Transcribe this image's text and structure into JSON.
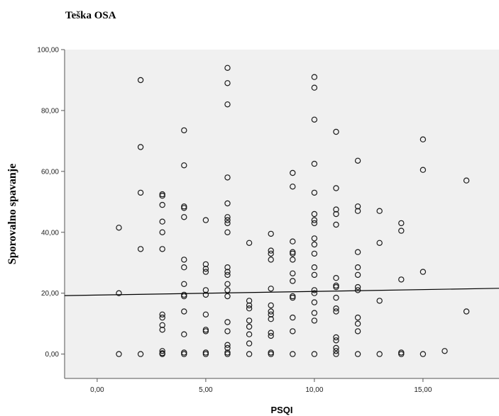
{
  "page": {
    "title": "Teška OSA"
  },
  "colors": {
    "plot_background": "#f0f0f0",
    "marker_stroke": "#1a1a1a",
    "fit_line": "#000000",
    "axis": "#555555"
  },
  "chart_data": {
    "type": "scatter",
    "title": "Teška OSA",
    "xlabel": "PSQI",
    "ylabel": "Sporovalno spavanje",
    "xlim": [
      -1.5,
      18.5
    ],
    "ylim": [
      -8,
      100
    ],
    "xticks": [
      0,
      5,
      10,
      15
    ],
    "xtick_labels": [
      "0,00",
      "5,00",
      "10,00",
      "15,00"
    ],
    "yticks": [
      0,
      20,
      40,
      60,
      80,
      100
    ],
    "ytick_labels": [
      "0,00",
      "20,00",
      "40,00",
      "60,00",
      "80,00",
      "100,00"
    ],
    "grid": false,
    "fit_line": {
      "x": [
        -1.5,
        18.5
      ],
      "y": [
        19.2,
        21.6
      ]
    },
    "points": [
      [
        1,
        41.5
      ],
      [
        1,
        20
      ],
      [
        1,
        0
      ],
      [
        2,
        90
      ],
      [
        2,
        68
      ],
      [
        2,
        53
      ],
      [
        2,
        34.5
      ],
      [
        2,
        0
      ],
      [
        3,
        52.5
      ],
      [
        3,
        52
      ],
      [
        3,
        49
      ],
      [
        3,
        43.5
      ],
      [
        3,
        40
      ],
      [
        3,
        34.5
      ],
      [
        3,
        13
      ],
      [
        3,
        12
      ],
      [
        3,
        9.5
      ],
      [
        3,
        8
      ],
      [
        3,
        1
      ],
      [
        3,
        0.3
      ],
      [
        3,
        0
      ],
      [
        4,
        73.5
      ],
      [
        4,
        62
      ],
      [
        4,
        48.5
      ],
      [
        4,
        48
      ],
      [
        4,
        45
      ],
      [
        4,
        31
      ],
      [
        4,
        28.5
      ],
      [
        4,
        23
      ],
      [
        4,
        19.5
      ],
      [
        4,
        19
      ],
      [
        4,
        14
      ],
      [
        4,
        6.5
      ],
      [
        4,
        0.5
      ],
      [
        4,
        0
      ],
      [
        5,
        44
      ],
      [
        5,
        29.5
      ],
      [
        5,
        28
      ],
      [
        5,
        27
      ],
      [
        5,
        21
      ],
      [
        5,
        19.5
      ],
      [
        5,
        13
      ],
      [
        5,
        8
      ],
      [
        5,
        7.5
      ],
      [
        5,
        0.5
      ],
      [
        5,
        0
      ],
      [
        6,
        94
      ],
      [
        6,
        89
      ],
      [
        6,
        82
      ],
      [
        6,
        58
      ],
      [
        6,
        49.5
      ],
      [
        6,
        45
      ],
      [
        6,
        44
      ],
      [
        6,
        43
      ],
      [
        6,
        40
      ],
      [
        6,
        28.5
      ],
      [
        6,
        27
      ],
      [
        6,
        26
      ],
      [
        6,
        23
      ],
      [
        6,
        21
      ],
      [
        6,
        19
      ],
      [
        6,
        10.5
      ],
      [
        6,
        7.5
      ],
      [
        6,
        3
      ],
      [
        6,
        2
      ],
      [
        6,
        0.5
      ],
      [
        6,
        0
      ],
      [
        7,
        36.5
      ],
      [
        7,
        17.5
      ],
      [
        7,
        16
      ],
      [
        7,
        15
      ],
      [
        7,
        11
      ],
      [
        7,
        9
      ],
      [
        7,
        6.5
      ],
      [
        7,
        3.5
      ],
      [
        7,
        0
      ],
      [
        8,
        39.5
      ],
      [
        8,
        34
      ],
      [
        8,
        33
      ],
      [
        8,
        31
      ],
      [
        8,
        21.5
      ],
      [
        8,
        16
      ],
      [
        8,
        14
      ],
      [
        8,
        13
      ],
      [
        8,
        11.5
      ],
      [
        8,
        7
      ],
      [
        8,
        6
      ],
      [
        8,
        0.5
      ],
      [
        8,
        0
      ],
      [
        9,
        59.5
      ],
      [
        9,
        55
      ],
      [
        9,
        37
      ],
      [
        9,
        33.5
      ],
      [
        9,
        33
      ],
      [
        9,
        31
      ],
      [
        9,
        26.5
      ],
      [
        9,
        24
      ],
      [
        9,
        19
      ],
      [
        9,
        18.5
      ],
      [
        9,
        12
      ],
      [
        9,
        7.5
      ],
      [
        9,
        0
      ],
      [
        10,
        91
      ],
      [
        10,
        87.5
      ],
      [
        10,
        77
      ],
      [
        10,
        62.5
      ],
      [
        10,
        53
      ],
      [
        10,
        46
      ],
      [
        10,
        44
      ],
      [
        10,
        43
      ],
      [
        10,
        38
      ],
      [
        10,
        36
      ],
      [
        10,
        33
      ],
      [
        10,
        28.5
      ],
      [
        10,
        26
      ],
      [
        10,
        21
      ],
      [
        10,
        20
      ],
      [
        10,
        17
      ],
      [
        10,
        13.5
      ],
      [
        10,
        11
      ],
      [
        10,
        0
      ],
      [
        11,
        73
      ],
      [
        11,
        54.5
      ],
      [
        11,
        47.5
      ],
      [
        11,
        46
      ],
      [
        11,
        42.5
      ],
      [
        11,
        25
      ],
      [
        11,
        22.5
      ],
      [
        11,
        22
      ],
      [
        11,
        18.5
      ],
      [
        11,
        15
      ],
      [
        11,
        14
      ],
      [
        11,
        5.5
      ],
      [
        11,
        4.5
      ],
      [
        11,
        2
      ],
      [
        11,
        1
      ],
      [
        11,
        0
      ],
      [
        12,
        63.5
      ],
      [
        12,
        48.5
      ],
      [
        12,
        47
      ],
      [
        12,
        33.5
      ],
      [
        12,
        28.5
      ],
      [
        12,
        26
      ],
      [
        12,
        22
      ],
      [
        12,
        21
      ],
      [
        12,
        12
      ],
      [
        12,
        10
      ],
      [
        12,
        7.5
      ],
      [
        12,
        0
      ],
      [
        13,
        47
      ],
      [
        13,
        36.5
      ],
      [
        13,
        17.5
      ],
      [
        13,
        0
      ],
      [
        14,
        43
      ],
      [
        14,
        40.5
      ],
      [
        14,
        24.5
      ],
      [
        14,
        0.5
      ],
      [
        14,
        0
      ],
      [
        15,
        70.5
      ],
      [
        15,
        60.5
      ],
      [
        15,
        27
      ],
      [
        15,
        0
      ],
      [
        16,
        1
      ],
      [
        17,
        57
      ],
      [
        17,
        14
      ]
    ]
  }
}
